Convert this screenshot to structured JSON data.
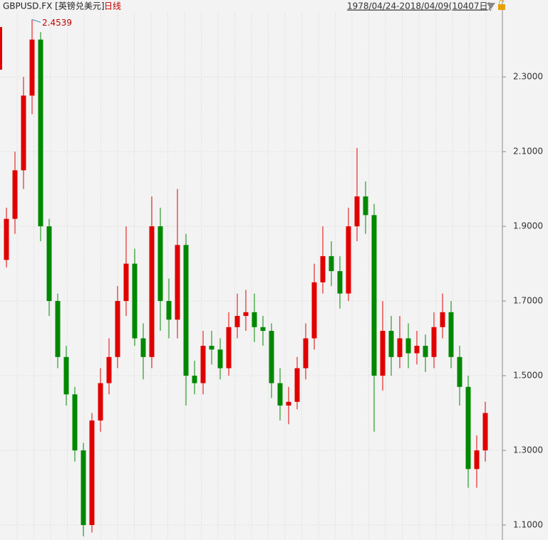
{
  "chart_data": {
    "type": "candlestick",
    "symbol": "GBPUSD.FX [英镑兑美元]",
    "period": "日线",
    "date_range": "1978/04/24-2018/04/09(10407日)",
    "max_label": 2.4539,
    "up_color": "#e00000",
    "down_color": "#008800",
    "open": [
      1.81,
      1.92,
      2.05,
      2.25,
      2.4,
      1.9,
      1.7,
      1.55,
      1.45,
      1.3,
      1.1,
      1.38,
      1.48,
      1.55,
      1.7,
      1.8,
      1.6,
      1.55,
      1.9,
      1.7,
      1.65,
      1.85,
      1.5,
      1.48,
      1.58,
      1.57,
      1.52,
      1.63,
      1.66,
      1.67,
      1.63,
      1.62,
      1.48,
      1.42,
      1.43,
      1.52,
      1.6,
      1.75,
      1.82,
      1.78,
      1.72,
      1.9,
      1.98,
      1.93,
      1.5,
      1.62,
      1.55,
      1.6,
      1.56,
      1.58,
      1.55,
      1.63,
      1.67,
      1.55,
      1.47,
      1.25,
      1.3
    ],
    "high": [
      1.95,
      2.1,
      2.3,
      2.4539,
      2.42,
      1.92,
      1.72,
      1.58,
      1.47,
      1.32,
      1.4,
      1.52,
      1.6,
      1.74,
      1.9,
      1.84,
      1.64,
      1.98,
      1.95,
      1.76,
      2.0,
      1.88,
      1.54,
      1.62,
      1.62,
      1.6,
      1.67,
      1.72,
      1.73,
      1.72,
      1.66,
      1.64,
      1.52,
      1.47,
      1.55,
      1.64,
      1.8,
      1.9,
      1.86,
      1.82,
      1.95,
      2.11,
      2.02,
      1.96,
      1.7,
      1.66,
      1.66,
      1.64,
      1.62,
      1.61,
      1.67,
      1.72,
      1.7,
      1.58,
      1.5,
      1.34,
      1.43
    ],
    "low": [
      1.79,
      1.88,
      2.0,
      2.2,
      1.86,
      1.66,
      1.52,
      1.42,
      1.27,
      1.07,
      1.08,
      1.35,
      1.45,
      1.52,
      1.66,
      1.58,
      1.49,
      1.52,
      1.62,
      1.6,
      1.6,
      1.42,
      1.45,
      1.45,
      1.53,
      1.49,
      1.5,
      1.6,
      1.62,
      1.59,
      1.58,
      1.44,
      1.38,
      1.37,
      1.41,
      1.49,
      1.57,
      1.72,
      1.74,
      1.68,
      1.7,
      1.86,
      1.88,
      1.35,
      1.46,
      1.5,
      1.52,
      1.52,
      1.53,
      1.51,
      1.52,
      1.6,
      1.52,
      1.42,
      1.2,
      1.2,
      1.27
    ],
    "close": [
      1.92,
      2.05,
      2.25,
      2.4,
      1.9,
      1.7,
      1.55,
      1.45,
      1.3,
      1.1,
      1.38,
      1.48,
      1.55,
      1.7,
      1.8,
      1.6,
      1.55,
      1.9,
      1.7,
      1.65,
      1.85,
      1.5,
      1.48,
      1.58,
      1.57,
      1.52,
      1.63,
      1.66,
      1.67,
      1.63,
      1.62,
      1.48,
      1.42,
      1.43,
      1.52,
      1.6,
      1.75,
      1.82,
      1.78,
      1.72,
      1.9,
      1.98,
      1.93,
      1.5,
      1.62,
      1.55,
      1.6,
      1.56,
      1.58,
      1.55,
      1.63,
      1.67,
      1.55,
      1.47,
      1.25,
      1.3,
      1.4
    ],
    "ylim": [
      1.06,
      2.506
    ],
    "yticks": [
      {
        "value": 1.1,
        "label": "1.1000"
      },
      {
        "value": 1.3,
        "label": "1.3000"
      },
      {
        "value": 1.5,
        "label": "1.5000"
      },
      {
        "value": 1.7,
        "label": "1.7000"
      },
      {
        "value": 1.9,
        "label": "1.9000"
      },
      {
        "value": 2.1,
        "label": "2.1000"
      },
      {
        "value": 2.3,
        "label": "2.3000"
      }
    ],
    "grid": true
  }
}
